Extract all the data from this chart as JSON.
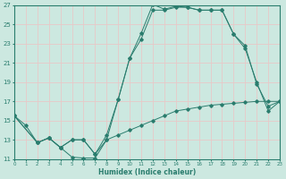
{
  "xlabel": "Humidex (Indice chaleur)",
  "bg_color": "#cce8e0",
  "grid_color": "#e8c8c8",
  "line_color": "#2a7d6e",
  "xlim": [
    0,
    23
  ],
  "ylim": [
    11,
    27
  ],
  "xticks": [
    0,
    1,
    2,
    3,
    4,
    5,
    6,
    7,
    8,
    9,
    10,
    11,
    12,
    13,
    14,
    15,
    16,
    17,
    18,
    19,
    20,
    21,
    22,
    23
  ],
  "yticks": [
    11,
    13,
    15,
    17,
    19,
    21,
    23,
    25,
    27
  ],
  "line1_x": [
    0,
    1,
    2,
    3,
    4,
    5,
    6,
    7,
    8,
    9,
    10,
    11,
    12,
    13,
    14,
    15,
    16,
    17,
    18,
    19,
    20,
    21,
    22,
    23
  ],
  "line1_y": [
    15.5,
    14.5,
    12.7,
    13.2,
    12.2,
    11.2,
    11.1,
    11.1,
    13.0,
    17.2,
    21.5,
    24.1,
    27.1,
    26.6,
    26.9,
    26.8,
    26.5,
    26.5,
    26.5,
    24.0,
    22.8,
    18.8,
    16.5,
    17.0
  ],
  "line2_x": [
    0,
    2,
    3,
    4,
    5,
    6,
    7,
    8,
    9,
    10,
    11,
    12,
    13,
    14,
    15,
    16,
    17,
    18,
    19,
    20,
    21,
    22,
    23
  ],
  "line2_y": [
    15.5,
    12.7,
    13.2,
    12.2,
    13.0,
    13.0,
    11.5,
    13.5,
    17.2,
    21.5,
    23.5,
    26.5,
    26.5,
    26.8,
    26.8,
    26.5,
    26.5,
    26.5,
    24.0,
    22.5,
    19.0,
    16.0,
    17.0
  ],
  "line3_x": [
    0,
    2,
    3,
    4,
    5,
    6,
    7,
    8,
    9,
    10,
    11,
    12,
    13,
    14,
    15,
    16,
    17,
    18,
    19,
    20,
    21,
    22,
    23
  ],
  "line3_y": [
    15.5,
    12.7,
    13.2,
    12.2,
    13.0,
    13.0,
    11.5,
    13.0,
    13.5,
    14.0,
    14.5,
    15.0,
    15.5,
    16.0,
    16.2,
    16.4,
    16.6,
    16.7,
    16.8,
    16.9,
    17.0,
    17.0,
    17.0
  ]
}
